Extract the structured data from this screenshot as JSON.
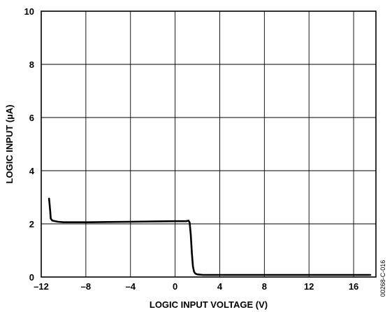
{
  "chart_data": {
    "type": "line",
    "title": "",
    "xlabel": "LOGIC INPUT VOLTAGE (V)",
    "ylabel": "LOGIC INPUT (µA)",
    "xlim": [
      -12,
      18
    ],
    "ylim": [
      0,
      10
    ],
    "x_ticks": [
      -12,
      -8,
      -4,
      0,
      4,
      8,
      12,
      16
    ],
    "x_tick_labels": [
      "–12",
      "–8",
      "–4",
      "0",
      "4",
      "8",
      "12",
      "16"
    ],
    "y_ticks": [
      0,
      2,
      4,
      6,
      8,
      10
    ],
    "y_tick_labels": [
      "0",
      "2",
      "4",
      "6",
      "8",
      "10"
    ],
    "grid": true,
    "figure_id": "00268-C-016",
    "series": [
      {
        "x": [
          -11.3,
          -11.2,
          -11.15,
          -11.0,
          -10.5,
          -10.0,
          -8.0,
          -6.0,
          -4.0,
          -2.0,
          0.0,
          0.8,
          1.0,
          1.1,
          1.2,
          1.3,
          1.4,
          1.5,
          1.6,
          1.7,
          1.8,
          1.9,
          2.0,
          2.2,
          2.5,
          3.0,
          6.0,
          10.0,
          14.0,
          17.5
        ],
        "y": [
          2.95,
          2.5,
          2.2,
          2.12,
          2.08,
          2.06,
          2.06,
          2.07,
          2.08,
          2.09,
          2.1,
          2.1,
          2.1,
          2.11,
          2.12,
          2.05,
          1.6,
          0.9,
          0.4,
          0.2,
          0.14,
          0.11,
          0.1,
          0.09,
          0.08,
          0.08,
          0.08,
          0.08,
          0.08,
          0.08
        ]
      }
    ]
  }
}
